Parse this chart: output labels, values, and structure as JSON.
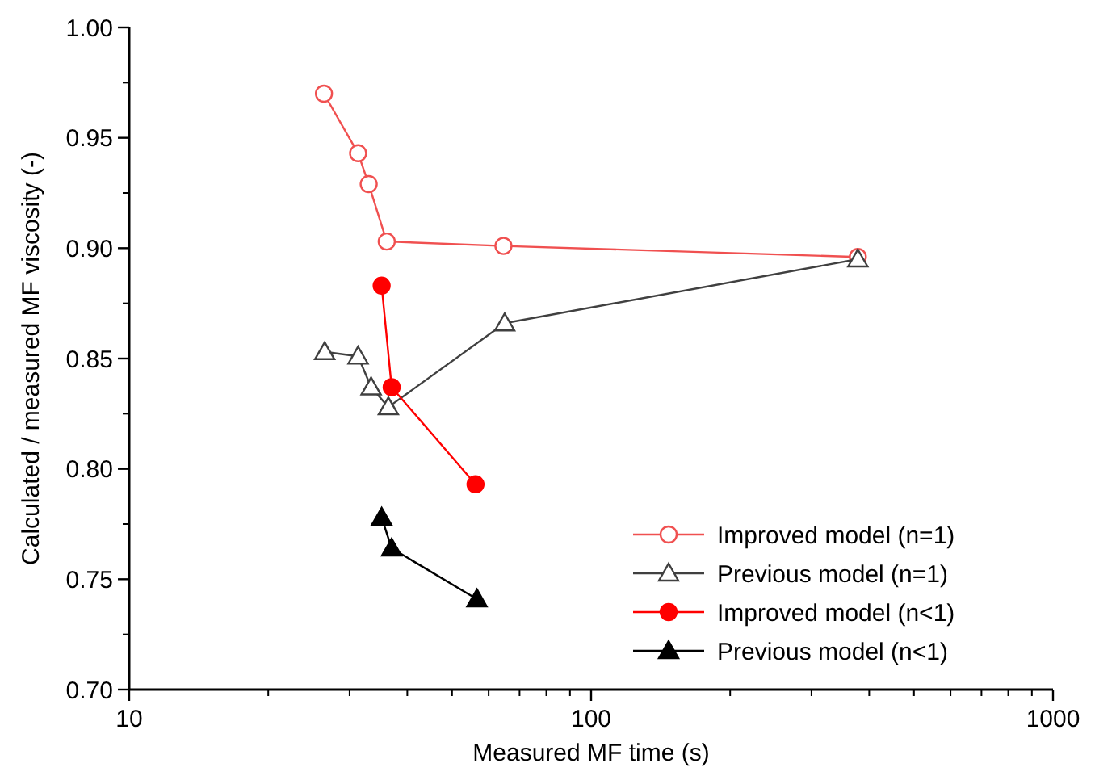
{
  "chart_data": {
    "type": "line",
    "xlabel": "Measured MF time (s)",
    "ylabel": "Calculated / measured MF viscosity (-)",
    "log": "x",
    "xlim": [
      10,
      1000
    ],
    "xticks": [
      10,
      100,
      1000
    ],
    "ylim": [
      0.7,
      1.0
    ],
    "yticks": [
      {
        "value": 0.7,
        "label": "0.70"
      },
      {
        "value": 0.75,
        "label": "0.75"
      },
      {
        "value": 0.8,
        "label": "0.80"
      },
      {
        "value": 0.85,
        "label": "0.85"
      },
      {
        "value": 0.9,
        "label": "0.90"
      },
      {
        "value": 0.95,
        "label": "0.95"
      },
      {
        "value": 1.0,
        "label": "1.00"
      }
    ],
    "grid": false,
    "legend": "bottom right",
    "series": [
      {
        "name": "Improved model (n=1)",
        "color": "#f05050",
        "marker": "circle",
        "x": [
          26.4,
          31.3,
          33.0,
          36.1,
          64.6,
          378
        ],
        "values": [
          0.97,
          0.943,
          0.929,
          0.903,
          0.901,
          0.896
        ]
      },
      {
        "name": "Previous model (n=1)",
        "color": "#404040",
        "marker": "triangle",
        "x": [
          26.5,
          31.3,
          33.4,
          36.4,
          65,
          378
        ],
        "values": [
          0.853,
          0.851,
          0.837,
          0.828,
          0.866,
          0.895
        ]
      },
      {
        "name": "Improved model (n<1)",
        "color": "#ff0000",
        "marker": "circle",
        "x": [
          35.2,
          37.0,
          56.2
        ],
        "values": [
          0.883,
          0.837,
          0.793
        ]
      },
      {
        "name": "Previous model (n<1)",
        "color": "#000000",
        "marker": "triangle",
        "x": [
          35.2,
          37.0,
          56.6
        ],
        "values": [
          0.778,
          0.764,
          0.741
        ]
      }
    ]
  }
}
